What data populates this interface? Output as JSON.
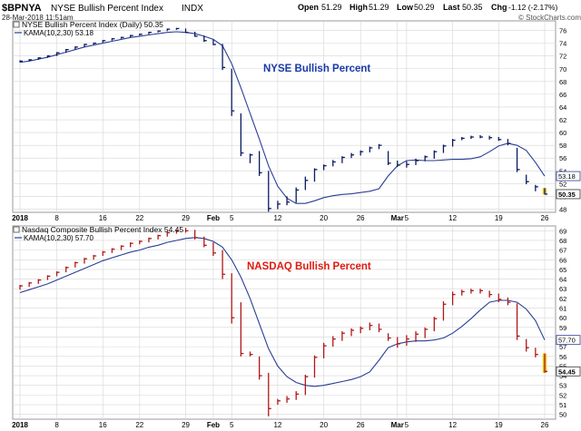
{
  "header": {
    "symbol": "$BPNYA",
    "name": "NYSE Bullish Percent Index",
    "exchange": "INDX",
    "datetime": "28-Mar-2018 11:51am",
    "open_label": "Open",
    "open_value": "51.29",
    "high_label": "High",
    "high_value": "51.29",
    "low_label": "Low",
    "low_value": "50.29",
    "last_label": "Last",
    "last_value": "50.35",
    "chg_label": "Chg",
    "chg_value": "-1.12 (-2.17%)",
    "watermark": "© StockCharts.com"
  },
  "colors": {
    "bar_up": "#000000",
    "bar_down": "#000000",
    "top_bar": "#0a1a60",
    "bottom_bar": "#b01818",
    "kama": "#2a3e96",
    "grid": "#d6d6d6",
    "last_marker": "#f2c81a",
    "top_title_color": "#1a3aa8",
    "bottom_title_color": "#e01a10"
  },
  "chart_data": [
    {
      "type": "ohlc",
      "legend": "NYSE Bullish Percent Index (Daily) 50.35",
      "legend_kama": "KAMA(10,2,30) 53.18",
      "title": "NYSE Bullish Percent",
      "ylim": [
        47.5,
        77.5
      ],
      "yticks": [
        48,
        50,
        52,
        54,
        56,
        58,
        60,
        62,
        64,
        66,
        68,
        70,
        72,
        74,
        76
      ],
      "last_label": "50.35",
      "kama_label": "53.18",
      "bars": [
        {
          "h": 71.3,
          "l": 71.0,
          "c": 71.2
        },
        {
          "h": 71.5,
          "l": 71.2,
          "c": 71.4
        },
        {
          "h": 71.8,
          "l": 71.4,
          "c": 71.7
        },
        {
          "h": 72.1,
          "l": 71.7,
          "c": 72.0
        },
        {
          "h": 72.6,
          "l": 72.0,
          "c": 72.5
        },
        {
          "h": 73.1,
          "l": 72.5,
          "c": 73.0
        },
        {
          "h": 73.5,
          "l": 73.0,
          "c": 73.4
        },
        {
          "h": 73.9,
          "l": 73.4,
          "c": 73.8
        },
        {
          "h": 74.1,
          "l": 73.8,
          "c": 74.0
        },
        {
          "h": 74.5,
          "l": 74.1,
          "c": 74.4
        },
        {
          "h": 74.8,
          "l": 74.4,
          "c": 74.7
        },
        {
          "h": 75.0,
          "l": 74.7,
          "c": 74.9
        },
        {
          "h": 75.3,
          "l": 74.9,
          "c": 75.2
        },
        {
          "h": 75.5,
          "l": 75.2,
          "c": 75.4
        },
        {
          "h": 75.8,
          "l": 75.4,
          "c": 75.7
        },
        {
          "h": 76.0,
          "l": 75.7,
          "c": 75.9
        },
        {
          "h": 76.3,
          "l": 75.9,
          "c": 76.2
        },
        {
          "h": 76.4,
          "l": 76.1,
          "c": 76.3
        },
        {
          "h": 76.3,
          "l": 75.6,
          "c": 75.7
        },
        {
          "h": 75.8,
          "l": 75.0,
          "c": 75.1
        },
        {
          "h": 75.2,
          "l": 74.2,
          "c": 74.4
        },
        {
          "h": 74.6,
          "l": 73.7,
          "c": 73.8
        },
        {
          "h": 73.9,
          "l": 69.8,
          "c": 70.2
        },
        {
          "h": 70.0,
          "l": 62.6,
          "c": 63.4
        },
        {
          "h": 63.0,
          "l": 56.3,
          "c": 56.8
        },
        {
          "h": 56.7,
          "l": 55.2,
          "c": 56.5
        },
        {
          "h": 57.1,
          "l": 53.2,
          "c": 53.7
        },
        {
          "h": 54.0,
          "l": 47.6,
          "c": 48.1
        },
        {
          "h": 49.3,
          "l": 48.0,
          "c": 48.8
        },
        {
          "h": 50.0,
          "l": 48.6,
          "c": 49.1
        },
        {
          "h": 51.4,
          "l": 49.0,
          "c": 51.0
        },
        {
          "h": 53.1,
          "l": 51.0,
          "c": 52.5
        },
        {
          "h": 54.4,
          "l": 52.3,
          "c": 54.2
        },
        {
          "h": 55.0,
          "l": 54.1,
          "c": 54.8
        },
        {
          "h": 55.7,
          "l": 54.7,
          "c": 55.4
        },
        {
          "h": 56.3,
          "l": 55.2,
          "c": 56.1
        },
        {
          "h": 56.8,
          "l": 56.0,
          "c": 56.5
        },
        {
          "h": 57.2,
          "l": 56.4,
          "c": 57.0
        },
        {
          "h": 57.8,
          "l": 56.9,
          "c": 57.6
        },
        {
          "h": 58.2,
          "l": 57.4,
          "c": 58.0
        },
        {
          "h": 57.1,
          "l": 54.9,
          "c": 55.2
        },
        {
          "h": 55.6,
          "l": 54.6,
          "c": 54.9
        },
        {
          "h": 55.5,
          "l": 54.5,
          "c": 55.0
        },
        {
          "h": 55.9,
          "l": 54.9,
          "c": 55.6
        },
        {
          "h": 56.4,
          "l": 55.5,
          "c": 56.2
        },
        {
          "h": 57.2,
          "l": 55.9,
          "c": 57.0
        },
        {
          "h": 58.1,
          "l": 56.8,
          "c": 57.9
        },
        {
          "h": 59.0,
          "l": 57.8,
          "c": 58.8
        },
        {
          "h": 59.3,
          "l": 58.8,
          "c": 59.1
        },
        {
          "h": 59.5,
          "l": 59.0,
          "c": 59.3
        },
        {
          "h": 59.6,
          "l": 59.1,
          "c": 59.3
        },
        {
          "h": 59.5,
          "l": 58.9,
          "c": 59.2
        },
        {
          "h": 59.3,
          "l": 58.7,
          "c": 58.9
        },
        {
          "h": 59.0,
          "l": 58.0,
          "c": 58.3
        },
        {
          "h": 57.6,
          "l": 53.8,
          "c": 54.2
        },
        {
          "h": 53.4,
          "l": 51.9,
          "c": 52.3
        },
        {
          "h": 51.8,
          "l": 50.8,
          "c": 51.5
        },
        {
          "h": 51.3,
          "l": 50.3,
          "c": 50.35
        }
      ],
      "kama": [
        71.0,
        71.2,
        71.5,
        71.8,
        72.2,
        72.6,
        73.0,
        73.4,
        73.7,
        74.0,
        74.3,
        74.6,
        74.9,
        75.1,
        75.3,
        75.5,
        75.7,
        75.8,
        75.7,
        75.5,
        75.1,
        74.6,
        73.6,
        70.8,
        67.0,
        63.0,
        59.0,
        54.8,
        51.6,
        49.7,
        48.9,
        48.9,
        49.3,
        49.8,
        50.1,
        50.3,
        50.4,
        50.6,
        50.8,
        51.2,
        53.2,
        54.8,
        55.6,
        55.7,
        55.6,
        55.6,
        55.7,
        55.8,
        55.8,
        55.9,
        56.2,
        57.0,
        57.9,
        58.3,
        58.0,
        57.2,
        55.3,
        53.18
      ]
    },
    {
      "type": "ohlc",
      "legend": "Nasdaq Composite Bullish Percent Index 54.45",
      "legend_kama": "KAMA(10,2,30) 57.70",
      "title": "NASDAQ Bullish Percent",
      "ylim": [
        49.5,
        69.5
      ],
      "yticks": [
        50,
        51,
        52,
        53,
        54,
        55,
        56,
        57,
        58,
        59,
        60,
        61,
        62,
        63,
        64,
        65,
        66,
        67,
        68,
        69
      ],
      "last_label": "54.45",
      "kama_label": "57.70",
      "bars": [
        {
          "h": 63.4,
          "l": 62.9,
          "c": 63.3
        },
        {
          "h": 63.7,
          "l": 63.2,
          "c": 63.6
        },
        {
          "h": 64.0,
          "l": 63.5,
          "c": 63.9
        },
        {
          "h": 64.4,
          "l": 63.9,
          "c": 64.3
        },
        {
          "h": 64.8,
          "l": 64.3,
          "c": 64.7
        },
        {
          "h": 65.3,
          "l": 64.7,
          "c": 65.2
        },
        {
          "h": 65.8,
          "l": 65.2,
          "c": 65.7
        },
        {
          "h": 66.2,
          "l": 65.6,
          "c": 66.1
        },
        {
          "h": 66.5,
          "l": 66.0,
          "c": 66.4
        },
        {
          "h": 66.9,
          "l": 66.4,
          "c": 66.8
        },
        {
          "h": 67.2,
          "l": 66.7,
          "c": 67.1
        },
        {
          "h": 67.5,
          "l": 67.0,
          "c": 67.4
        },
        {
          "h": 67.8,
          "l": 67.3,
          "c": 67.7
        },
        {
          "h": 68.0,
          "l": 67.6,
          "c": 67.9
        },
        {
          "h": 68.3,
          "l": 67.8,
          "c": 68.2
        },
        {
          "h": 68.6,
          "l": 68.1,
          "c": 68.5
        },
        {
          "h": 68.9,
          "l": 68.4,
          "c": 68.8
        },
        {
          "h": 69.1,
          "l": 68.7,
          "c": 69.0
        },
        {
          "h": 69.3,
          "l": 68.8,
          "c": 69.0
        },
        {
          "h": 69.1,
          "l": 68.1,
          "c": 68.3
        },
        {
          "h": 68.4,
          "l": 67.3,
          "c": 67.5
        },
        {
          "h": 67.8,
          "l": 66.4,
          "c": 66.7
        },
        {
          "h": 67.0,
          "l": 64.0,
          "c": 64.5
        },
        {
          "h": 64.6,
          "l": 59.4,
          "c": 60.0
        },
        {
          "h": 61.6,
          "l": 56.0,
          "c": 56.3
        },
        {
          "h": 56.5,
          "l": 56.0,
          "c": 56.2
        },
        {
          "h": 56.0,
          "l": 53.6,
          "c": 54.0
        },
        {
          "h": 54.3,
          "l": 49.8,
          "c": 50.6
        },
        {
          "h": 51.6,
          "l": 51.0,
          "c": 51.4
        },
        {
          "h": 51.9,
          "l": 51.2,
          "c": 51.6
        },
        {
          "h": 52.4,
          "l": 51.5,
          "c": 52.1
        },
        {
          "h": 54.1,
          "l": 52.0,
          "c": 53.9
        },
        {
          "h": 56.1,
          "l": 53.8,
          "c": 55.9
        },
        {
          "h": 57.4,
          "l": 55.8,
          "c": 57.1
        },
        {
          "h": 58.1,
          "l": 57.0,
          "c": 57.8
        },
        {
          "h": 58.6,
          "l": 57.6,
          "c": 58.4
        },
        {
          "h": 58.9,
          "l": 58.1,
          "c": 58.7
        },
        {
          "h": 59.1,
          "l": 58.4,
          "c": 58.9
        },
        {
          "h": 59.5,
          "l": 58.7,
          "c": 59.2
        },
        {
          "h": 59.4,
          "l": 58.5,
          "c": 58.8
        },
        {
          "h": 58.4,
          "l": 57.6,
          "c": 57.9
        },
        {
          "h": 58.0,
          "l": 56.9,
          "c": 57.3
        },
        {
          "h": 58.2,
          "l": 57.1,
          "c": 57.8
        },
        {
          "h": 58.6,
          "l": 57.5,
          "c": 58.3
        },
        {
          "h": 59.0,
          "l": 57.9,
          "c": 58.8
        },
        {
          "h": 60.1,
          "l": 58.6,
          "c": 59.9
        },
        {
          "h": 61.7,
          "l": 59.7,
          "c": 61.4
        },
        {
          "h": 62.7,
          "l": 61.3,
          "c": 62.4
        },
        {
          "h": 62.9,
          "l": 62.3,
          "c": 62.7
        },
        {
          "h": 63.0,
          "l": 62.5,
          "c": 62.8
        },
        {
          "h": 63.0,
          "l": 62.5,
          "c": 62.8
        },
        {
          "h": 62.8,
          "l": 62.1,
          "c": 62.4
        },
        {
          "h": 62.5,
          "l": 61.6,
          "c": 61.9
        },
        {
          "h": 62.1,
          "l": 61.3,
          "c": 61.6
        },
        {
          "h": 61.5,
          "l": 57.7,
          "c": 58.1
        },
        {
          "h": 57.8,
          "l": 56.5,
          "c": 56.9
        },
        {
          "h": 56.9,
          "l": 55.9,
          "c": 56.2
        },
        {
          "h": 56.3,
          "l": 54.3,
          "c": 54.45
        }
      ],
      "kama": [
        62.6,
        62.9,
        63.2,
        63.5,
        63.9,
        64.3,
        64.7,
        65.1,
        65.5,
        65.9,
        66.2,
        66.5,
        66.8,
        67.0,
        67.3,
        67.5,
        67.8,
        68.0,
        68.2,
        68.3,
        68.2,
        67.9,
        67.3,
        66.0,
        64.2,
        62.0,
        59.4,
        56.8,
        55.0,
        53.9,
        53.3,
        53.0,
        52.9,
        53.0,
        53.2,
        53.4,
        53.6,
        53.9,
        54.4,
        55.6,
        56.9,
        57.3,
        57.5,
        57.6,
        57.6,
        57.7,
        57.9,
        58.4,
        59.1,
        59.9,
        60.8,
        61.6,
        61.8,
        61.8,
        61.6,
        60.9,
        59.7,
        57.7
      ]
    }
  ],
  "x_axis": {
    "labels": [
      {
        "text": "2018",
        "i": 0,
        "bold": true
      },
      {
        "text": "8",
        "i": 4
      },
      {
        "text": "16",
        "i": 9
      },
      {
        "text": "22",
        "i": 13
      },
      {
        "text": "29",
        "i": 18
      },
      {
        "text": "Feb",
        "i": 21,
        "bold": true
      },
      {
        "text": "5",
        "i": 23
      },
      {
        "text": "12",
        "i": 28
      },
      {
        "text": "20",
        "i": 33
      },
      {
        "text": "26",
        "i": 37
      },
      {
        "text": "Mar",
        "i": 41,
        "bold": true
      },
      {
        "text": "5",
        "i": 42
      },
      {
        "text": "12",
        "i": 47
      },
      {
        "text": "19",
        "i": 52
      },
      {
        "text": "26",
        "i": 57
      }
    ]
  }
}
